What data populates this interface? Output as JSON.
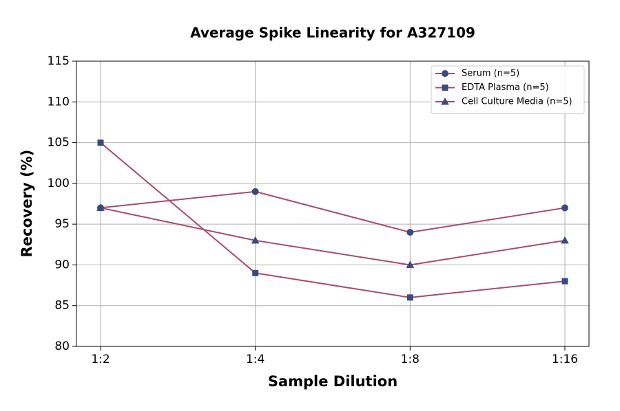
{
  "chart_data": {
    "type": "line",
    "title": "Average Spike Linearity for A327109",
    "x_label": "Sample Dilution",
    "y_label": "Recovery (%)",
    "categories": [
      "1:2",
      "1:4",
      "1:8",
      "1:16"
    ],
    "series": [
      {
        "name": "Serum (n=5)",
        "color": "#a94a70",
        "marker": "circle",
        "marker_color": "#3b4a78",
        "values": [
          97,
          99,
          94,
          97
        ]
      },
      {
        "name": "EDTA Plasma (n=5)",
        "color": "#a94a70",
        "marker": "square",
        "marker_color": "#3b4a78",
        "values": [
          105,
          89,
          86,
          88
        ]
      },
      {
        "name": "Cell Culture Media (n=5)",
        "color": "#a94a70",
        "marker": "triangle",
        "marker_color": "#3b4a78",
        "values": [
          97,
          93,
          90,
          93
        ]
      }
    ],
    "ylim": [
      80,
      115
    ],
    "yticks": [
      80,
      85,
      90,
      95,
      100,
      105,
      110,
      115
    ],
    "grid": true,
    "legend": "upper right"
  }
}
